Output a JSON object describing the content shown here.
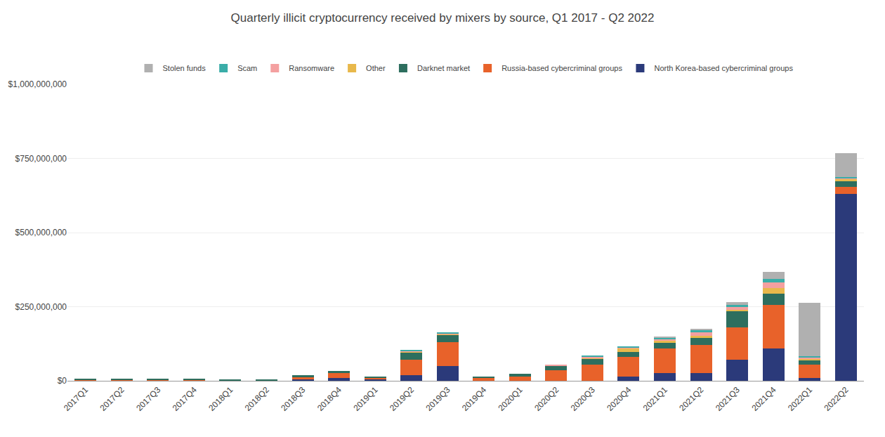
{
  "chart_data": {
    "type": "bar",
    "title": "Quarterly illicit cryptocurrency received by mixers by source, Q1 2017 - Q2 2022",
    "categories": [
      "2017Q1",
      "2017Q2",
      "2017Q3",
      "2017Q4",
      "2018Q1",
      "2018Q2",
      "2018Q3",
      "2018Q4",
      "2019Q1",
      "2019Q2",
      "2019Q3",
      "2019Q4",
      "2020Q1",
      "2020Q2",
      "2020Q3",
      "2020Q4",
      "2021Q1",
      "2021Q2",
      "2021Q3",
      "2021Q4",
      "2022Q1",
      "2022Q2"
    ],
    "series": [
      {
        "name": "North Korea-based cybercriminal groups",
        "color": "#2b3a7a",
        "values": [
          0,
          0,
          0,
          0,
          0,
          0,
          5000000,
          10000000,
          5000000,
          20000000,
          50000000,
          0,
          0,
          0,
          0,
          15000000,
          25000000,
          25000000,
          70000000,
          110000000,
          10000000,
          630000000
        ]
      },
      {
        "name": "Russia-based cybercriminal groups",
        "color": "#e8622a",
        "values": [
          3000000,
          3000000,
          3000000,
          3000000,
          2000000,
          2000000,
          8000000,
          15000000,
          5000000,
          50000000,
          80000000,
          10000000,
          15000000,
          35000000,
          55000000,
          65000000,
          85000000,
          95000000,
          110000000,
          145000000,
          45000000,
          25000000
        ]
      },
      {
        "name": "Darknet market",
        "color": "#2d6e5e",
        "values": [
          2000000,
          5000000,
          5000000,
          5000000,
          2000000,
          2000000,
          5000000,
          8000000,
          5000000,
          25000000,
          25000000,
          5000000,
          8000000,
          15000000,
          18000000,
          18000000,
          18000000,
          25000000,
          55000000,
          40000000,
          15000000,
          20000000
        ]
      },
      {
        "name": "Other",
        "color": "#e8b84b",
        "values": [
          0,
          0,
          0,
          0,
          0,
          0,
          0,
          0,
          0,
          3000000,
          2000000,
          0,
          0,
          0,
          5000000,
          12000000,
          7000000,
          7000000,
          5000000,
          18000000,
          3000000,
          4000000
        ]
      },
      {
        "name": "Ransomware",
        "color": "#f4a0a0",
        "values": [
          0,
          0,
          0,
          0,
          0,
          0,
          0,
          0,
          0,
          2000000,
          2000000,
          0,
          0,
          3000000,
          3000000,
          3000000,
          5000000,
          12000000,
          8000000,
          18000000,
          5000000,
          5000000
        ]
      },
      {
        "name": "Scam",
        "color": "#3aada8",
        "values": [
          0,
          0,
          0,
          0,
          0,
          0,
          0,
          0,
          0,
          5000000,
          5000000,
          0,
          0,
          0,
          3000000,
          3000000,
          4000000,
          6000000,
          8000000,
          12000000,
          5000000,
          4000000
        ]
      },
      {
        "name": "Stolen funds",
        "color": "#b0b0b0",
        "values": [
          0,
          0,
          0,
          0,
          0,
          0,
          0,
          0,
          0,
          0,
          0,
          0,
          0,
          0,
          0,
          0,
          5000000,
          5000000,
          10000000,
          25000000,
          180000000,
          80000000
        ]
      }
    ],
    "stacked": true,
    "ylim": [
      0,
      1000000000
    ],
    "yticks": [
      {
        "value": 0,
        "label": "$0"
      },
      {
        "value": 250000000,
        "label": "$250,000,000"
      },
      {
        "value": 500000000,
        "label": "$500,000,000"
      },
      {
        "value": 750000000,
        "label": "$750,000,000"
      },
      {
        "value": 1000000000,
        "label": "$1,000,000,000"
      }
    ],
    "grid": true,
    "legend": "upper center"
  }
}
